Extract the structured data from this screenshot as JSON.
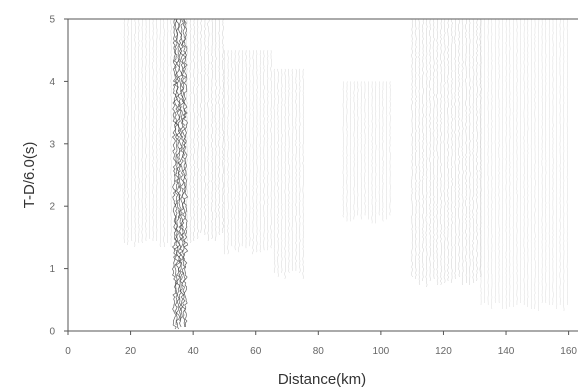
{
  "chart_data": {
    "type": "seismic-record-section",
    "title": "",
    "xlabel": "Distance(km)",
    "ylabel": "T-D/6.0(s)",
    "xlim": [
      0,
      163
    ],
    "ylim": [
      0,
      5
    ],
    "x_ticks": [
      0,
      20,
      40,
      60,
      80,
      100,
      120,
      140,
      160
    ],
    "y_ticks": [
      0,
      1,
      2,
      3,
      4,
      5
    ],
    "grid": false,
    "colors": {
      "trace": "#9a9a9a",
      "strong_trace": "#444444",
      "axis": "#555555"
    },
    "trace_groups": [
      {
        "x_start": 18,
        "x_end": 34,
        "t_start": 1.3,
        "t_end": 5.0,
        "intensity": 0.45
      },
      {
        "x_start": 34,
        "x_end": 38,
        "t_start": 0.0,
        "t_end": 5.0,
        "intensity": 1.0
      },
      {
        "x_start": 38,
        "x_end": 50,
        "t_start": 1.4,
        "t_end": 5.0,
        "intensity": 0.7
      },
      {
        "x_start": 50,
        "x_end": 66,
        "t_start": 1.2,
        "t_end": 4.5,
        "intensity": 0.5
      },
      {
        "x_start": 66,
        "x_end": 76,
        "t_start": 0.8,
        "t_end": 4.2,
        "intensity": 0.5
      },
      {
        "x_start": 88,
        "x_end": 104,
        "t_start": 1.7,
        "t_end": 4.0,
        "intensity": 0.35
      },
      {
        "x_start": 110,
        "x_end": 132,
        "t_start": 0.7,
        "t_end": 5.0,
        "intensity": 0.65
      },
      {
        "x_start": 132,
        "x_end": 160,
        "t_start": 0.3,
        "t_end": 5.0,
        "intensity": 0.3
      }
    ]
  }
}
